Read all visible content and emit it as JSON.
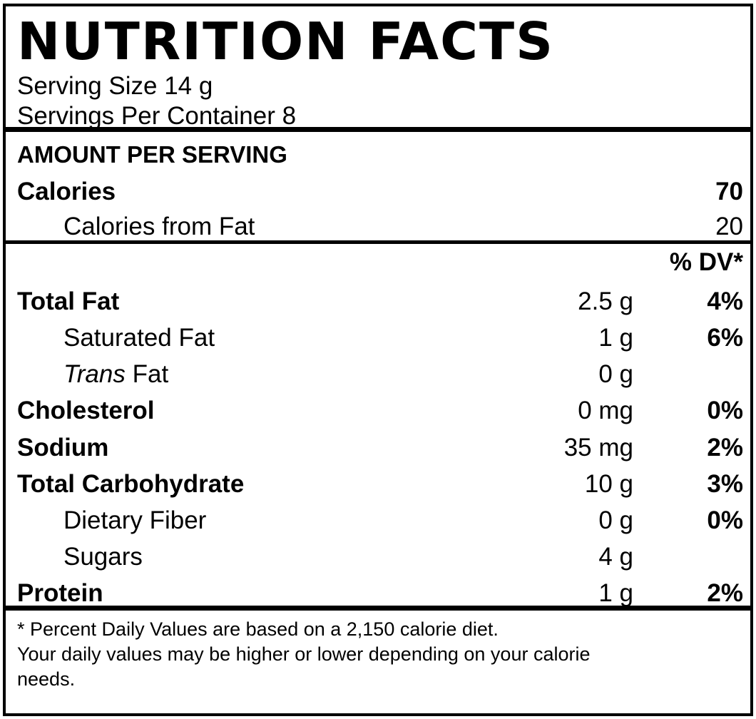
{
  "label": {
    "title": "NUTRITION FACTS",
    "serving_size": "Serving Size 14 g",
    "servings_per_container": "Servings Per Container 8",
    "amount_per_serving": "AMOUNT PER SERVING",
    "calories": {
      "label": "Calories",
      "value": "70"
    },
    "calories_from_fat": {
      "label": "Calories from Fat",
      "value": "20"
    },
    "dv_header": "% DV*",
    "nutrients": [
      {
        "name": "Total Fat",
        "amount": "2.5 g",
        "dv": "4%"
      },
      {
        "name": "Saturated Fat",
        "amount": "1 g",
        "dv": "6%"
      },
      {
        "name_italic": "Trans",
        "name": " Fat",
        "amount": "0 g",
        "dv": ""
      },
      {
        "name": "Cholesterol",
        "amount": "0 mg",
        "dv": "0%"
      },
      {
        "name": "Sodium",
        "amount": "35 mg",
        "dv": "2%"
      },
      {
        "name": "Total Carbohydrate",
        "amount": "10 g",
        "dv": "3%"
      },
      {
        "name": "Dietary Fiber",
        "amount": "0 g",
        "dv": "0%"
      },
      {
        "name": "Sugars",
        "amount": "4 g",
        "dv": ""
      },
      {
        "name": "Protein",
        "amount": "1 g",
        "dv": "2%"
      }
    ],
    "footnote": [
      "* Percent Daily Values are based on a 2,150 calorie diet.",
      "Your daily values may be higher or lower depending on your calorie",
      "needs."
    ]
  },
  "colors": {
    "ink": "#000000",
    "background": "#ffffff"
  }
}
